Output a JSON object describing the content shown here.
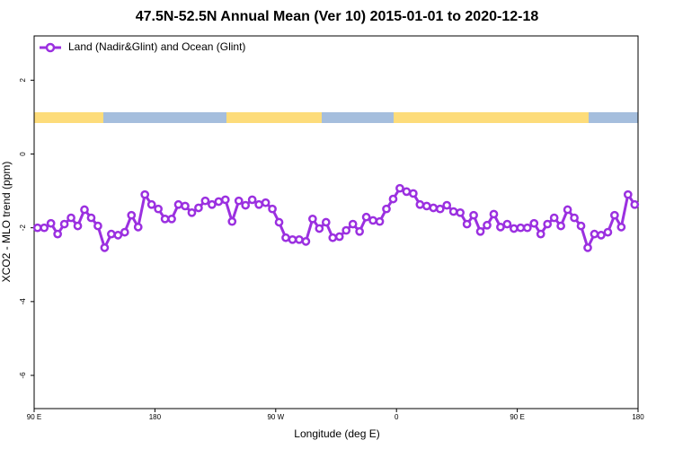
{
  "chart_data": {
    "type": "line",
    "title": "47.5N-52.5N Annual Mean (Ver 10)   2015-01-01 to 2020-12-18",
    "x_label": "Longitude (deg E)",
    "y_label": "XCO2 - MLO trend (ppm)",
    "xlim": [
      90,
      540
    ],
    "ylim": [
      -6.9,
      3.2
    ],
    "xticks": [
      {
        "value": 90,
        "label": "90 E"
      },
      180,
      {
        "value": 270,
        "label": "90 W"
      },
      {
        "value": 360,
        "label": "0"
      },
      {
        "value": 450,
        "label": "90 E"
      },
      {
        "value": 540,
        "label": "180"
      }
    ],
    "yticks": [
      -6,
      -4,
      -2,
      0,
      2
    ],
    "legend": "top-left",
    "x": [
      92.5,
      97.5,
      102.5,
      107.5,
      112.5,
      117.5,
      122.5,
      127.5,
      132.5,
      137.5,
      142.5,
      147.5,
      152.5,
      157.5,
      162.5,
      167.5,
      172.5,
      177.5,
      182.5,
      187.5,
      192.5,
      197.5,
      202.5,
      207.5,
      212.5,
      217.5,
      222.5,
      227.5,
      232.5,
      237.5,
      242.5,
      247.5,
      252.5,
      257.5,
      262.5,
      267.5,
      272.5,
      277.5,
      282.5,
      287.5,
      292.5,
      297.5,
      302.5,
      307.5,
      312.5,
      317.5,
      322.5,
      327.5,
      332.5,
      337.5,
      342.5,
      347.5,
      352.5,
      357.5,
      362.5,
      367.5,
      372.5,
      377.5,
      382.5,
      387.5,
      392.5,
      397.5,
      402.5,
      407.5,
      412.5,
      417.5,
      422.5,
      427.5,
      432.5,
      437.5,
      442.5,
      447.5,
      452.5,
      457.5,
      462.5,
      467.5,
      472.5,
      477.5,
      482.5,
      487.5,
      492.5,
      497.5,
      502.5,
      507.5,
      512.5,
      517.5,
      522.5,
      527.5,
      532.5,
      537.5
    ],
    "series": [
      {
        "name": "Land (Nadir&Glint) and Ocean (Glint)",
        "color": "#9b30e0",
        "values": [
          -2.0,
          -2.0,
          -1.88,
          -2.17,
          -1.9,
          -1.73,
          -1.95,
          -1.51,
          -1.73,
          -1.95,
          -2.54,
          -2.17,
          -2.2,
          -2.12,
          -1.66,
          -1.98,
          -1.1,
          -1.37,
          -1.49,
          -1.76,
          -1.76,
          -1.37,
          -1.41,
          -1.59,
          -1.46,
          -1.27,
          -1.37,
          -1.29,
          -1.24,
          -1.83,
          -1.27,
          -1.39,
          -1.24,
          -1.37,
          -1.32,
          -1.49,
          -1.85,
          -2.27,
          -2.32,
          -2.32,
          -2.37,
          -1.76,
          -2.02,
          -1.85,
          -2.27,
          -2.24,
          -2.07,
          -1.9,
          -2.1,
          -1.71,
          -1.8,
          -1.83,
          -1.49,
          -1.22,
          -0.93,
          -1.02,
          -1.07,
          -1.37,
          -1.41,
          -1.46,
          -1.49,
          -1.39,
          -1.56,
          -1.59,
          -1.9,
          -1.66,
          -2.1,
          -1.93,
          -1.63,
          -1.98,
          -1.9,
          -2.02,
          -2.0,
          -2.0,
          -1.88,
          -2.17,
          -1.9,
          -1.73,
          -1.95,
          -1.51,
          -1.73,
          -1.95,
          -2.54,
          -2.17,
          -2.2,
          -2.12,
          -1.66,
          -1.98,
          -1.1,
          -1.37
        ]
      }
    ]
  }
}
